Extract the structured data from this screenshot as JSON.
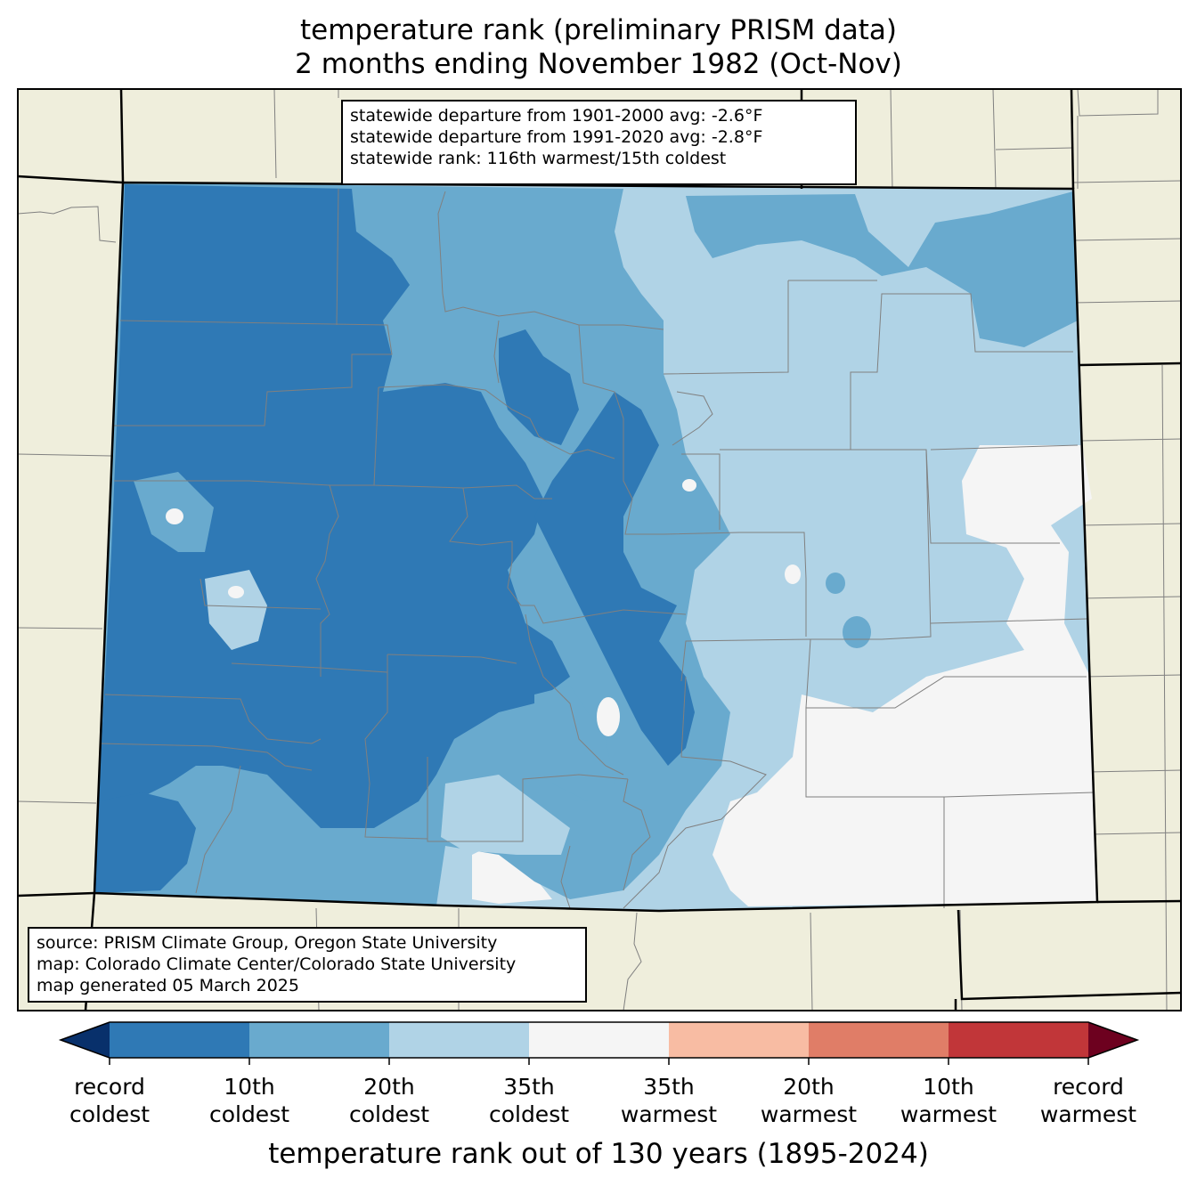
{
  "title": {
    "line1": "temperature rank (preliminary PRISM data)",
    "line2": "2 months ending November 1982 (Oct-Nov)"
  },
  "stats": {
    "line1": "statewide departure from 1901-2000 avg: -2.6°F",
    "line2": "statewide departure from 1991-2020 avg: -2.8°F",
    "line3": "statewide rank: 116th warmest/15th coldest"
  },
  "source": {
    "line1": "source: PRISM Climate Group, Oregon State University",
    "line2": "map: Colorado Climate Center/Colorado State University",
    "line3": "map generated 05 March 2025"
  },
  "colorbar": {
    "title": "temperature rank out of 130 years (1895-2024)",
    "ticks": [
      {
        "line1": "record",
        "line2": "coldest"
      },
      {
        "line1": "10th",
        "line2": "coldest"
      },
      {
        "line1": "20th",
        "line2": "coldest"
      },
      {
        "line1": "35th",
        "line2": "coldest"
      },
      {
        "line1": "35th",
        "line2": "warmest"
      },
      {
        "line1": "20th",
        "line2": "warmest"
      },
      {
        "line1": "10th",
        "line2": "warmest"
      },
      {
        "line1": "record",
        "line2": "warmest"
      }
    ],
    "colors": [
      "#08306b",
      "#2f79b5",
      "#69aace",
      "#b0d3e6",
      "#f5f5f5",
      "#f8bca3",
      "#e07d67",
      "#c13639",
      "#6d011f"
    ]
  },
  "map_colors": {
    "land": "#efeedc",
    "state_border": "#000000",
    "county_border": "#808080"
  }
}
